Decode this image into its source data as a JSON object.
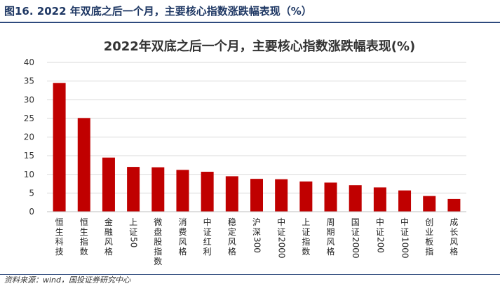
{
  "figure_title": "图16. 2022 年双底之后一个月，主要核心指数涨跌幅表现（%）",
  "source_note": "资料来源：wind，国投证券研究中心",
  "colors": {
    "bar": "#c00000",
    "rule": "#2e4a7d",
    "grid": "#d9d9d9"
  },
  "chart_data": {
    "type": "bar",
    "title": "2022年双底之后一个月，主要核心指数涨跌幅表现(%)",
    "xlabel": "",
    "ylabel": "",
    "ylim": [
      0,
      40
    ],
    "yticks": [
      0,
      5,
      10,
      15,
      20,
      25,
      30,
      35,
      40
    ],
    "grid": true,
    "categories": [
      "恒生科技",
      "恒生指数",
      "金融风格",
      "上证50",
      "微盘股指数",
      "消费风格",
      "中证红利",
      "稳定风格",
      "沪深300",
      "中证2000",
      "上证指数",
      "周期风格",
      "国证2000",
      "中证200",
      "中证1000",
      "创业板指",
      "成长风格"
    ],
    "values": [
      34.5,
      25.1,
      14.5,
      12.0,
      11.9,
      11.2,
      10.7,
      9.5,
      8.8,
      8.7,
      8.1,
      7.8,
      7.1,
      6.5,
      5.7,
      4.2,
      3.4
    ]
  }
}
